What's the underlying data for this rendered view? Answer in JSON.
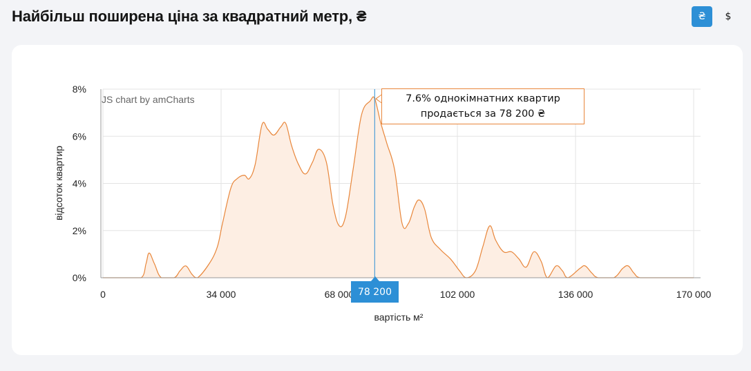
{
  "page": {
    "title": "Найбільш поширена ціна за квадратний метр, ₴",
    "currency_buttons": [
      {
        "label": "₴",
        "active": true
      },
      {
        "label": "$",
        "active": false
      }
    ]
  },
  "colors": {
    "line": "#e8863a",
    "fill": "#fdeee3",
    "cursor": "#2d8fd6",
    "grid": "#e3e3e3"
  },
  "chart_data": {
    "type": "area",
    "title": "",
    "xlabel": "вартість м²",
    "ylabel": "відсоток квартир",
    "credit": "JS chart by amCharts",
    "xlim": [
      0,
      170000
    ],
    "ylim": [
      0,
      8
    ],
    "x_ticks": [
      {
        "value": 0,
        "label": "0"
      },
      {
        "value": 34000,
        "label": "34 000"
      },
      {
        "value": 68000,
        "label": "68 000"
      },
      {
        "value": 102000,
        "label": "102 000"
      },
      {
        "value": 136000,
        "label": "136 000"
      },
      {
        "value": 170000,
        "label": "170 000"
      }
    ],
    "y_ticks": [
      {
        "value": 0,
        "label": "0%"
      },
      {
        "value": 2,
        "label": "2%"
      },
      {
        "value": 4,
        "label": "4%"
      },
      {
        "value": 6,
        "label": "6%"
      },
      {
        "value": 8,
        "label": "8%"
      }
    ],
    "points": [
      [
        0,
        0
      ],
      [
        6000,
        0
      ],
      [
        11000,
        0
      ],
      [
        12400,
        0.6
      ],
      [
        13300,
        1.05
      ],
      [
        14800,
        0.6
      ],
      [
        16800,
        0
      ],
      [
        20500,
        0
      ],
      [
        22200,
        0.3
      ],
      [
        23900,
        0.5
      ],
      [
        25600,
        0.15
      ],
      [
        27200,
        0
      ],
      [
        30600,
        0.6
      ],
      [
        32900,
        1.3
      ],
      [
        34400,
        2.3
      ],
      [
        36800,
        3.8
      ],
      [
        38600,
        4.2
      ],
      [
        40700,
        4.35
      ],
      [
        42100,
        4.2
      ],
      [
        43800,
        4.8
      ],
      [
        45800,
        6.5
      ],
      [
        47400,
        6.3
      ],
      [
        49200,
        6.05
      ],
      [
        51200,
        6.4
      ],
      [
        52600,
        6.55
      ],
      [
        54300,
        5.6
      ],
      [
        56300,
        4.8
      ],
      [
        58300,
        4.4
      ],
      [
        60300,
        4.9
      ],
      [
        62100,
        5.45
      ],
      [
        64300,
        4.9
      ],
      [
        66200,
        3.1
      ],
      [
        68000,
        2.2
      ],
      [
        69800,
        2.6
      ],
      [
        72000,
        4.6
      ],
      [
        74400,
        6.9
      ],
      [
        76900,
        7.5
      ],
      [
        78200,
        7.6
      ],
      [
        79900,
        6.6
      ],
      [
        81700,
        5.7
      ],
      [
        83900,
        4.6
      ],
      [
        86100,
        2.3
      ],
      [
        87900,
        2.3
      ],
      [
        89600,
        3.0
      ],
      [
        91000,
        3.3
      ],
      [
        92600,
        2.9
      ],
      [
        94500,
        1.7
      ],
      [
        97100,
        1.2
      ],
      [
        100000,
        0.8
      ],
      [
        102600,
        0.3
      ],
      [
        104600,
        0
      ],
      [
        107200,
        0.3
      ],
      [
        109300,
        1.3
      ],
      [
        111300,
        2.2
      ],
      [
        113000,
        1.6
      ],
      [
        115300,
        1.1
      ],
      [
        117600,
        1.1
      ],
      [
        119700,
        0.8
      ],
      [
        121800,
        0.45
      ],
      [
        124000,
        1.1
      ],
      [
        126100,
        0.7
      ],
      [
        127900,
        0
      ],
      [
        130400,
        0.5
      ],
      [
        132200,
        0.3
      ],
      [
        133800,
        0
      ],
      [
        137300,
        0.4
      ],
      [
        138800,
        0.5
      ],
      [
        140700,
        0.2
      ],
      [
        142500,
        0
      ],
      [
        147000,
        0
      ],
      [
        149600,
        0.4
      ],
      [
        151200,
        0.5
      ],
      [
        152800,
        0.2
      ],
      [
        154600,
        0
      ],
      [
        160000,
        0
      ],
      [
        170000,
        0
      ]
    ],
    "cursor": {
      "x": 78200,
      "label": "78 200",
      "tooltip_line1": "7.6% однокімнатних квартир",
      "tooltip_line2": "продається за 78 200 ₴"
    }
  }
}
